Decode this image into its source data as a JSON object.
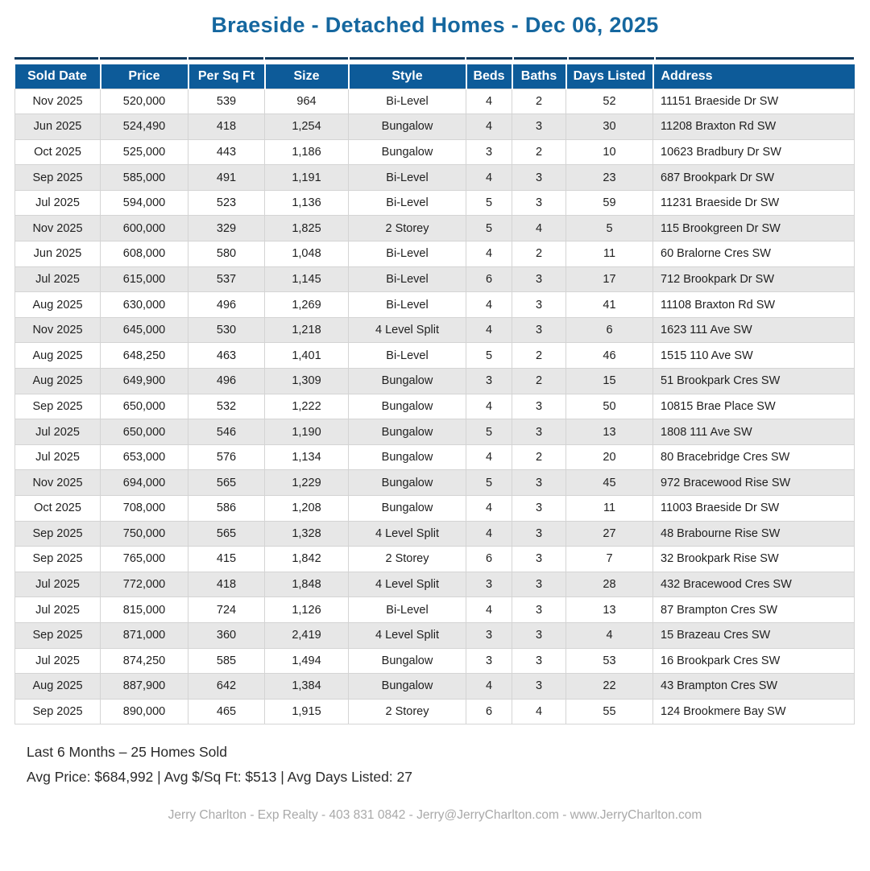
{
  "page": {
    "title": "Braeside - Detached Homes - Dec 06, 2025"
  },
  "colors": {
    "header_bg": "#0d5b99",
    "title_text": "#15679f",
    "accent_navy": "#0e3a5f",
    "row_alt": "#e7e7e7",
    "cell_border": "#d4d4d4",
    "footer_muted": "#a9a9a9"
  },
  "table": {
    "columns": [
      "Sold Date",
      "Price",
      "Per Sq Ft",
      "Size",
      "Style",
      "Beds",
      "Baths",
      "Days Listed",
      "Address"
    ],
    "rows": [
      [
        "Nov 2025",
        "520,000",
        "539",
        "964",
        "Bi-Level",
        "4",
        "2",
        "52",
        "11151 Braeside Dr SW"
      ],
      [
        "Jun 2025",
        "524,490",
        "418",
        "1,254",
        "Bungalow",
        "4",
        "3",
        "30",
        "11208 Braxton Rd SW"
      ],
      [
        "Oct 2025",
        "525,000",
        "443",
        "1,186",
        "Bungalow",
        "3",
        "2",
        "10",
        "10623 Bradbury Dr SW"
      ],
      [
        "Sep 2025",
        "585,000",
        "491",
        "1,191",
        "Bi-Level",
        "4",
        "3",
        "23",
        "687 Brookpark Dr SW"
      ],
      [
        "Jul 2025",
        "594,000",
        "523",
        "1,136",
        "Bi-Level",
        "5",
        "3",
        "59",
        "11231 Braeside Dr SW"
      ],
      [
        "Nov 2025",
        "600,000",
        "329",
        "1,825",
        "2 Storey",
        "5",
        "4",
        "5",
        "115 Brookgreen Dr SW"
      ],
      [
        "Jun 2025",
        "608,000",
        "580",
        "1,048",
        "Bi-Level",
        "4",
        "2",
        "11",
        "60 Bralorne Cres SW"
      ],
      [
        "Jul 2025",
        "615,000",
        "537",
        "1,145",
        "Bi-Level",
        "6",
        "3",
        "17",
        "712 Brookpark Dr SW"
      ],
      [
        "Aug 2025",
        "630,000",
        "496",
        "1,269",
        "Bi-Level",
        "4",
        "3",
        "41",
        "11108 Braxton Rd SW"
      ],
      [
        "Nov 2025",
        "645,000",
        "530",
        "1,218",
        "4 Level Split",
        "4",
        "3",
        "6",
        "1623 111 Ave SW"
      ],
      [
        "Aug 2025",
        "648,250",
        "463",
        "1,401",
        "Bi-Level",
        "5",
        "2",
        "46",
        "1515 110 Ave SW"
      ],
      [
        "Aug 2025",
        "649,900",
        "496",
        "1,309",
        "Bungalow",
        "3",
        "2",
        "15",
        "51 Brookpark Cres SW"
      ],
      [
        "Sep 2025",
        "650,000",
        "532",
        "1,222",
        "Bungalow",
        "4",
        "3",
        "50",
        "10815 Brae Place SW"
      ],
      [
        "Jul 2025",
        "650,000",
        "546",
        "1,190",
        "Bungalow",
        "5",
        "3",
        "13",
        "1808 111 Ave SW"
      ],
      [
        "Jul 2025",
        "653,000",
        "576",
        "1,134",
        "Bungalow",
        "4",
        "2",
        "20",
        "80 Bracebridge Cres SW"
      ],
      [
        "Nov 2025",
        "694,000",
        "565",
        "1,229",
        "Bungalow",
        "5",
        "3",
        "45",
        "972 Bracewood Rise SW"
      ],
      [
        "Oct 2025",
        "708,000",
        "586",
        "1,208",
        "Bungalow",
        "4",
        "3",
        "11",
        "11003 Braeside Dr SW"
      ],
      [
        "Sep 2025",
        "750,000",
        "565",
        "1,328",
        "4 Level Split",
        "4",
        "3",
        "27",
        "48 Brabourne Rise SW"
      ],
      [
        "Sep 2025",
        "765,000",
        "415",
        "1,842",
        "2 Storey",
        "6",
        "3",
        "7",
        "32 Brookpark Rise SW"
      ],
      [
        "Jul 2025",
        "772,000",
        "418",
        "1,848",
        "4 Level Split",
        "3",
        "3",
        "28",
        "432 Bracewood Cres SW"
      ],
      [
        "Jul 2025",
        "815,000",
        "724",
        "1,126",
        "Bi-Level",
        "4",
        "3",
        "13",
        "87 Brampton Cres SW"
      ],
      [
        "Sep 2025",
        "871,000",
        "360",
        "2,419",
        "4 Level Split",
        "3",
        "3",
        "4",
        "15 Brazeau Cres SW"
      ],
      [
        "Jul 2025",
        "874,250",
        "585",
        "1,494",
        "Bungalow",
        "3",
        "3",
        "53",
        "16 Brookpark Cres SW"
      ],
      [
        "Aug 2025",
        "887,900",
        "642",
        "1,384",
        "Bungalow",
        "4",
        "3",
        "22",
        "43 Brampton Cres SW"
      ],
      [
        "Sep 2025",
        "890,000",
        "465",
        "1,915",
        "2 Storey",
        "6",
        "4",
        "55",
        "124 Brookmere Bay SW"
      ]
    ]
  },
  "summary": {
    "line1": "Last 6 Months – 25 Homes Sold",
    "line2": "Avg Price: $684,992 | Avg $/Sq Ft: $513 | Avg Days Listed: 27"
  },
  "footer": {
    "credit": "Jerry Charlton - Exp Realty - 403 831 0842 - Jerry@JerryCharlton.com - www.JerryCharlton.com"
  }
}
